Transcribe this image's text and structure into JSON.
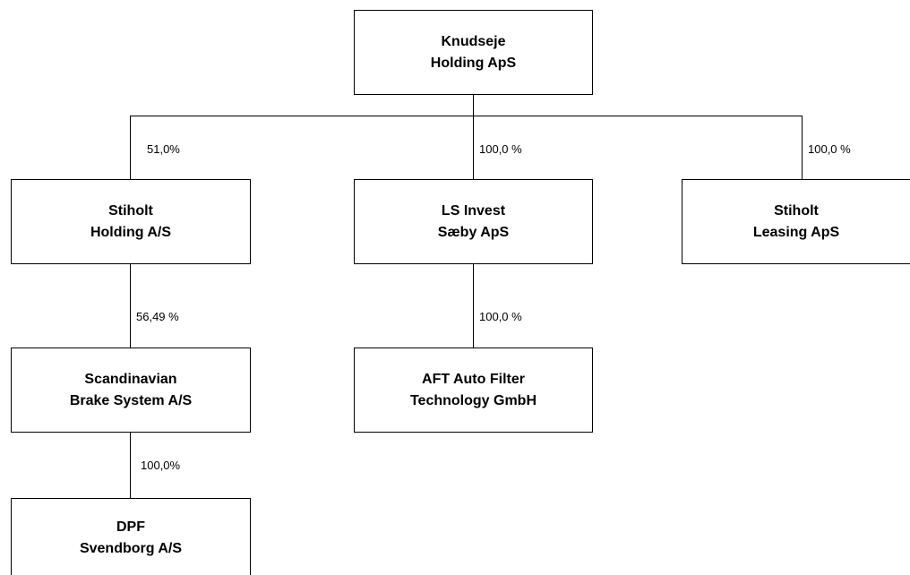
{
  "entities": {
    "knudseje": {
      "line1": "Knudseje",
      "line2": "Holding ApS"
    },
    "stiholt_holding": {
      "line1": "Stiholt",
      "line2": "Holding A/S"
    },
    "ls_invest": {
      "line1": "LS Invest",
      "line2": "Sæby ApS"
    },
    "stiholt_leasing": {
      "line1": "Stiholt",
      "line2": "Leasing ApS"
    },
    "scandinavian_brake": {
      "line1": "Scandinavian",
      "line2": "Brake System A/S"
    },
    "aft_auto_filter": {
      "line1": "AFT Auto Filter",
      "line2": "Technology GmbH"
    },
    "dpf_svendborg": {
      "line1": "DPF",
      "line2": "Svendborg A/S"
    }
  },
  "ownership": {
    "knudseje_to_stiholt_holding": "51,0%",
    "knudseje_to_ls_invest": "100,0 %",
    "knudseje_to_stiholt_leasing": "100,0 %",
    "stiholt_holding_to_scandinavian_brake": "56,49 %",
    "ls_invest_to_aft_auto_filter": "100,0 %",
    "scandinavian_brake_to_dpf_svendborg": "100,0%"
  }
}
